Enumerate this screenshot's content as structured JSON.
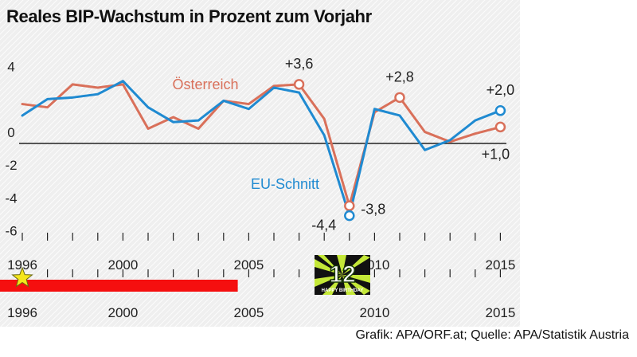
{
  "title": "Reales BIP-Wachstum in Prozent zum Vorjahr",
  "source": "Grafik: APA/ORF.at; Quelle: APA/Statistik Austria",
  "badge_text": "12",
  "badge_subtext": "HAPPY BIRTHDAY",
  "chart_data": {
    "type": "line",
    "title": "Reales BIP-Wachstum in Prozent zum Vorjahr",
    "xlim": [
      1996,
      2015
    ],
    "ylim": [
      -7,
      5
    ],
    "x_ticks": [
      1996,
      2000,
      2005,
      2010,
      2015
    ],
    "x_tick_labels": [
      "1996",
      "2000",
      "2005",
      "2010",
      "2015"
    ],
    "y_ticks": [
      4,
      2,
      0,
      -2,
      -4,
      -6
    ],
    "y_tick_labels": [
      "4",
      "",
      "0",
      "-2",
      "-4",
      "-6"
    ],
    "grid": false,
    "x": [
      1996,
      1997,
      1998,
      1999,
      2000,
      2001,
      2002,
      2003,
      2004,
      2005,
      2006,
      2007,
      2008,
      2009,
      2010,
      2011,
      2012,
      2013,
      2014,
      2015
    ],
    "series": [
      {
        "name": "Österreich",
        "color": "#d9705a",
        "values": [
          2.4,
          2.2,
          3.6,
          3.4,
          3.6,
          0.9,
          1.6,
          0.9,
          2.6,
          2.4,
          3.5,
          3.6,
          1.5,
          -3.8,
          1.9,
          2.8,
          0.7,
          0.1,
          0.6,
          1.0
        ]
      },
      {
        "name": "EU-Schnitt",
        "color": "#1f8ad1",
        "values": [
          1.7,
          2.7,
          2.8,
          3.0,
          3.8,
          2.2,
          1.3,
          1.4,
          2.6,
          2.1,
          3.4,
          3.1,
          0.5,
          -4.4,
          2.1,
          1.7,
          -0.4,
          0.2,
          1.4,
          2.0
        ]
      }
    ],
    "annotations": [
      {
        "text": "+3,6",
        "x": 2007,
        "y": 3.6,
        "series": "Österreich"
      },
      {
        "text": "+2,8",
        "x": 2011,
        "y": 2.8,
        "series": "Österreich"
      },
      {
        "text": "+2,0",
        "x": 2015,
        "y": 2.0,
        "series": "EU-Schnitt"
      },
      {
        "text": "+1,0",
        "x": 2015,
        "y": 1.0,
        "series": "Österreich"
      },
      {
        "text": "-3,8",
        "x": 2009,
        "y": -3.8,
        "series": "Österreich"
      },
      {
        "text": "-4,4",
        "x": 2009,
        "y": -4.4,
        "series": "EU-Schnitt"
      }
    ]
  },
  "timeline": {
    "bar_color": "#f50f0f",
    "star_color": "#f5e61c",
    "start_year": 1996,
    "end_year": 2004
  }
}
